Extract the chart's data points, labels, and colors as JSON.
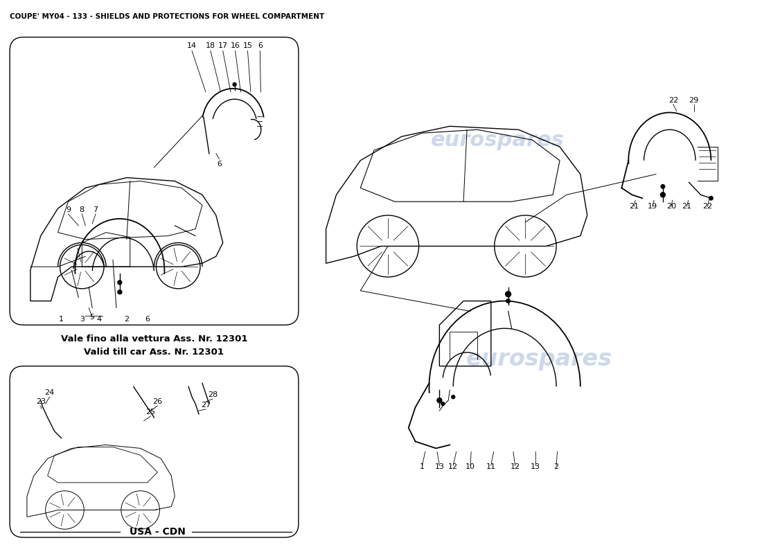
{
  "title": "COUPE' MY04 - 133 - SHIELDS AND PROTECTIONS FOR WHEEL COMPARTMENT",
  "title_fontsize": 7.5,
  "title_fontweight": "bold",
  "bg": "#ffffff",
  "fg": "#000000",
  "note1": "Vale fino alla vettura Ass. Nr. 12301",
  "note2": "Valid till car Ass. Nr. 12301",
  "note_fs": 9.5,
  "note_fw": "bold",
  "usa_cdn": "USA - CDN",
  "usa_fs": 10,
  "usa_fw": "bold",
  "wm_color": "#c8d4e8",
  "wm_fs": 20,
  "label_fs": 8,
  "lw_thin": 0.7,
  "lw_med": 1.0,
  "lw_thick": 1.3
}
